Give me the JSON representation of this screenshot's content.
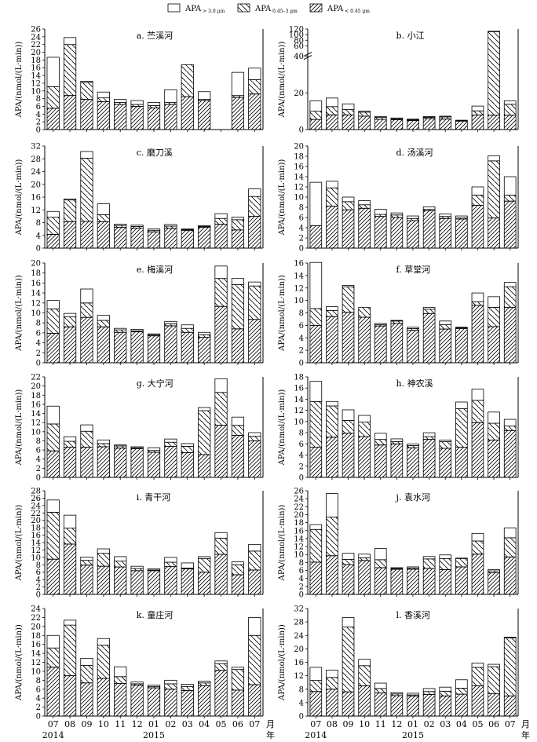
{
  "legend": {
    "items": [
      {
        "label": "APA",
        "sub": "> 3.0 μm",
        "pattern": "blank"
      },
      {
        "label": "APA",
        "sub": "0.45–3 μm",
        "pattern": "hatch-back"
      },
      {
        "label": "APA",
        "sub": "< 0.45 μm",
        "pattern": "hatch-fwd"
      }
    ]
  },
  "y_label": "APA/(nmol/(L·min))",
  "x_axis": {
    "months": [
      "07",
      "08",
      "09",
      "10",
      "11",
      "12",
      "01",
      "02",
      "03",
      "04",
      "05",
      "06",
      "07"
    ],
    "month_unit": "月",
    "year_unit": "年",
    "years": [
      {
        "label": "2014",
        "at_index": 0
      },
      {
        "label": "2015",
        "at_index": 6
      }
    ]
  },
  "chart_data": [
    {
      "id": "a",
      "type": "bar",
      "stacked": true,
      "title": "a. 苎溪河",
      "ylim": [
        0,
        26
      ],
      "yticks": [
        0,
        2,
        4,
        6,
        8,
        10,
        12,
        14,
        16,
        18,
        20,
        22,
        24,
        26
      ],
      "series": [
        {
          "values": [
            5.5,
            8.8,
            7.8,
            7.2,
            6.5,
            6,
            5.6,
            6.5,
            8.5,
            7.5,
            0,
            8.3,
            9.2
          ]
        },
        {
          "values": [
            5.6,
            13.2,
            4.4,
            1,
            0.5,
            0.5,
            0.6,
            0.5,
            8.3,
            0.3,
            0,
            0.5,
            3.7
          ]
        },
        {
          "values": [
            7.6,
            1.8,
            0.3,
            1.5,
            0.8,
            1,
            0.8,
            3.3,
            0,
            2,
            0,
            6,
            3
          ]
        }
      ]
    },
    {
      "id": "b",
      "type": "bar",
      "stacked": true,
      "title": "b. 小江",
      "axis_break": true,
      "yticks": [
        0,
        20,
        40,
        60,
        80,
        100,
        120
      ],
      "series": [
        {
          "values": [
            5.5,
            8,
            8,
            7.3,
            5.6,
            5.4,
            4.9,
            6,
            5.7,
            4.6,
            7.9,
            7.8,
            7.8
          ]
        },
        {
          "values": [
            4.5,
            4.5,
            3,
            2.2,
            1,
            0.5,
            0.5,
            0.7,
            1.2,
            0.3,
            2.3,
            103,
            6
          ]
        },
        {
          "values": [
            5.7,
            4.7,
            3,
            0.6,
            0.5,
            0.4,
            0.3,
            0.4,
            0.4,
            0.2,
            2.6,
            1.5,
            1.9
          ]
        }
      ]
    },
    {
      "id": "c",
      "type": "bar",
      "stacked": true,
      "title": "c. 磨刀溪",
      "ylim": [
        0,
        32
      ],
      "yticks": [
        0,
        4,
        8,
        12,
        16,
        20,
        24,
        28,
        32
      ],
      "series": [
        {
          "values": [
            4.3,
            8.3,
            8.4,
            8.3,
            6.5,
            6.3,
            5.1,
            6.2,
            5.5,
            6.5,
            7.5,
            5.7,
            10
          ]
        },
        {
          "values": [
            5.4,
            6.8,
            19.8,
            2.2,
            0.6,
            0.5,
            0.5,
            0.7,
            0.3,
            0.3,
            1.8,
            3.2,
            6.2
          ]
        },
        {
          "values": [
            1.8,
            0.3,
            2.1,
            3.4,
            0.4,
            0.4,
            0.4,
            0.5,
            0.2,
            0.2,
            1.5,
            0.8,
            2.4
          ]
        }
      ]
    },
    {
      "id": "d",
      "type": "bar",
      "stacked": true,
      "title": "d. 汤溪河",
      "ylim": [
        0,
        20
      ],
      "yticks": [
        0,
        2,
        4,
        6,
        8,
        10,
        12,
        14,
        16,
        18,
        20
      ],
      "series": [
        {
          "values": [
            4.4,
            8.2,
            7.5,
            7.8,
            6.2,
            6,
            5.4,
            7.3,
            5.8,
            5.7,
            8.4,
            5.9,
            9.2
          ]
        },
        {
          "values": [
            0,
            3.6,
            1.6,
            0.7,
            0.4,
            0.5,
            0.4,
            0.3,
            0.4,
            0.2,
            2,
            11.2,
            1.2
          ]
        },
        {
          "values": [
            8.5,
            1.3,
            0.9,
            0.8,
            1,
            0.4,
            0.5,
            0.5,
            0.5,
            0.4,
            1.6,
            1,
            3.6
          ]
        }
      ]
    },
    {
      "id": "e",
      "type": "bar",
      "stacked": true,
      "title": "e. 梅溪河",
      "ylim": [
        0,
        20
      ],
      "yticks": [
        0,
        2,
        4,
        6,
        8,
        10,
        12,
        14,
        16,
        18,
        20
      ],
      "series": [
        {
          "values": [
            5.9,
            7.2,
            9.1,
            7.2,
            6.1,
            6.2,
            5.4,
            7.4,
            6.1,
            5.1,
            11.3,
            6.8,
            8.7
          ]
        },
        {
          "values": [
            4.9,
            2,
            2.9,
            1.3,
            0.5,
            0.2,
            0.2,
            0.4,
            0.8,
            0.5,
            5.6,
            8.9,
            6.7
          ]
        },
        {
          "values": [
            1.7,
            0.7,
            2.8,
            1,
            0.3,
            0.3,
            0.2,
            0.5,
            0.7,
            0.5,
            2.5,
            1.2,
            0.8
          ]
        }
      ]
    },
    {
      "id": "f",
      "type": "bar",
      "stacked": true,
      "title": "f. 草堂河",
      "ylim": [
        0,
        16
      ],
      "yticks": [
        0,
        2,
        4,
        6,
        8,
        10,
        12,
        14,
        16
      ],
      "series": [
        {
          "values": [
            6,
            7.4,
            8.1,
            7.3,
            5.9,
            6.3,
            5.2,
            7.9,
            5.4,
            5.5,
            9.2,
            5.8,
            8.9
          ]
        },
        {
          "values": [
            2.7,
            1,
            4.1,
            1.6,
            0.2,
            0.4,
            0.3,
            0.7,
            0.7,
            0.1,
            0.6,
            3.1,
            3.3
          ]
        },
        {
          "values": [
            7.4,
            0.6,
            0.2,
            0,
            0.2,
            0.1,
            0.2,
            0.3,
            0.6,
            0.1,
            1.4,
            1.7,
            0.7
          ]
        }
      ]
    },
    {
      "id": "g",
      "type": "bar",
      "stacked": true,
      "title": "g. 大宁河",
      "ylim": [
        0,
        22
      ],
      "yticks": [
        0,
        2,
        4,
        6,
        8,
        10,
        12,
        14,
        16,
        18,
        20,
        22
      ],
      "series": [
        {
          "values": [
            5.8,
            6.6,
            6.6,
            6.7,
            6.4,
            6.3,
            5.5,
            6.8,
            5.4,
            5,
            11.4,
            9.2,
            8
          ]
        },
        {
          "values": [
            5.9,
            1.3,
            3.5,
            0.7,
            0.5,
            0.2,
            0.4,
            0.9,
            1.4,
            9.6,
            7.2,
            2.2,
            1
          ]
        },
        {
          "values": [
            3.9,
            1,
            1.4,
            0.8,
            0.2,
            0.2,
            0.6,
            0.7,
            0.6,
            0.7,
            3,
            1.8,
            0.8
          ]
        }
      ]
    },
    {
      "id": "h",
      "type": "bar",
      "stacked": true,
      "title": "h. 神农溪",
      "ylim": [
        0,
        18
      ],
      "yticks": [
        0,
        2,
        4,
        6,
        8,
        10,
        12,
        14,
        16,
        18
      ],
      "series": [
        {
          "values": [
            5.4,
            7.2,
            7.9,
            7.3,
            5.8,
            6,
            5.3,
            6.8,
            5.2,
            5.4,
            9.8,
            6.7,
            8.4
          ]
        },
        {
          "values": [
            8.2,
            5.6,
            2.3,
            2.6,
            1,
            0.4,
            0.4,
            0.5,
            1.2,
            6.9,
            4,
            3,
            0.8
          ]
        },
        {
          "values": [
            3.6,
            0.8,
            1.9,
            1.2,
            1.1,
            0.5,
            0.3,
            0.7,
            0.3,
            1.2,
            2,
            2,
            1.2
          ]
        }
      ]
    },
    {
      "id": "i",
      "type": "bar",
      "stacked": true,
      "title": "i. 青干河",
      "ylim": [
        0,
        28
      ],
      "yticks": [
        0,
        2,
        4,
        6,
        8,
        10,
        12,
        14,
        16,
        18,
        20,
        22,
        24,
        26,
        28
      ],
      "series": [
        {
          "values": [
            9.5,
            13.6,
            7.9,
            7.6,
            7.4,
            6.4,
            6.4,
            7.5,
            6.9,
            6,
            10.8,
            5.3,
            6.6
          ]
        },
        {
          "values": [
            12.7,
            4.3,
            1.3,
            3.5,
            1.6,
            0.6,
            0.2,
            1.2,
            0.2,
            3.7,
            4.4,
            2.7,
            5.1
          ]
        },
        {
          "values": [
            3.3,
            3.5,
            0.9,
            1.2,
            1.2,
            0.6,
            0.3,
            1.3,
            1.4,
            0.5,
            1.5,
            0.8,
            1.8
          ]
        }
      ]
    },
    {
      "id": "j",
      "type": "bar",
      "stacked": true,
      "title": "j. 袁水河",
      "ylim": [
        0,
        26
      ],
      "yticks": [
        0,
        2,
        4,
        6,
        8,
        10,
        12,
        14,
        16,
        18,
        20,
        22,
        24,
        26
      ],
      "series": [
        {
          "values": [
            8.1,
            9.7,
            7.5,
            8.5,
            6.7,
            6.3,
            6.3,
            6.5,
            6.2,
            6.9,
            10.1,
            5.4,
            9.4
          ]
        },
        {
          "values": [
            8.2,
            9.7,
            1.3,
            0.7,
            2,
            0.2,
            0.3,
            2.4,
            2.8,
            2.1,
            3.3,
            0.5,
            4.8
          ]
        },
        {
          "values": [
            1.2,
            5.9,
            1.5,
            0.9,
            2.8,
            0.2,
            0.3,
            0.6,
            0.9,
            0.1,
            1.9,
            0.3,
            2.5
          ]
        }
      ]
    },
    {
      "id": "k",
      "type": "bar",
      "stacked": true,
      "title": "k. 童庄河",
      "ylim": [
        0,
        24
      ],
      "yticks": [
        0,
        2,
        4,
        6,
        8,
        10,
        12,
        14,
        16,
        18,
        20,
        22,
        24
      ],
      "series": [
        {
          "values": [
            10.9,
            9,
            7.4,
            8.4,
            7.3,
            6.9,
            6.3,
            6,
            5.7,
            6.8,
            10.2,
            5.8,
            7
          ]
        },
        {
          "values": [
            4.3,
            11.3,
            3.9,
            7.4,
            1.5,
            0.3,
            0.3,
            1.2,
            0.9,
            0.6,
            1.5,
            4.6,
            11
          ]
        },
        {
          "values": [
            2.8,
            1.1,
            1.6,
            1.5,
            2.2,
            0.4,
            0.3,
            0.8,
            0.5,
            0.4,
            0.6,
            0.5,
            4
          ]
        }
      ]
    },
    {
      "id": "l",
      "type": "bar",
      "stacked": true,
      "title": "l. 香溪河",
      "ylim": [
        0,
        32
      ],
      "yticks": [
        0,
        4,
        8,
        12,
        16,
        20,
        24,
        28,
        32
      ],
      "series": [
        {
          "values": [
            7.3,
            8,
            7.2,
            9,
            6.9,
            6.1,
            6,
            6.4,
            6,
            6.5,
            9,
            6.7,
            6
          ]
        },
        {
          "values": [
            3.3,
            3.5,
            19.3,
            6,
            1.3,
            0.5,
            0.3,
            0.9,
            1.4,
            1.8,
            5.5,
            8,
            17.3
          ]
        },
        {
          "values": [
            3.9,
            2.2,
            2.8,
            1.9,
            1.6,
            0.4,
            0.5,
            0.9,
            1.2,
            2.5,
            1.3,
            0.7,
            0.2
          ]
        }
      ]
    }
  ]
}
